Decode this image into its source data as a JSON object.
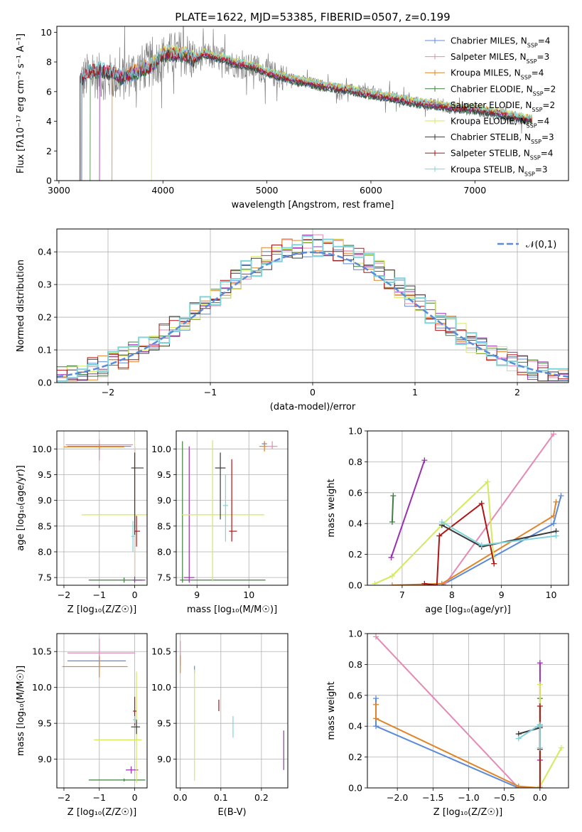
{
  "title": "PLATE=1622, MJD=53385, FIBERID=0507, z=0.199",
  "colors": {
    "chabrier_miles": "#5b8ad8",
    "salpeter_miles": "#e589b5",
    "kroupa_miles": "#e0842a",
    "chabrier_elodie": "#3f7f3f",
    "salpeter_elodie": "#9b2fb1",
    "kroupa_elodie": "#d4ea5a",
    "chabrier_stelib": "#3a3a3a",
    "salpeter_stelib": "#b01515",
    "kroupa_stelib": "#7fd4d9",
    "data": "#808080",
    "normal": "#5b8ad8",
    "grid": "#b0b0b0"
  },
  "chart_data": [
    {
      "id": "spectrum",
      "type": "line",
      "xlabel": "wavelength [Angstrom, rest frame]",
      "ylabel": "Flux [fλ10⁻¹⁷ erg cm⁻² s⁻¹ A⁻¹]",
      "xlim": [
        2980,
        7900
      ],
      "ylim": [
        0,
        10.4
      ],
      "xticks": [
        3000,
        4000,
        5000,
        6000,
        7000
      ],
      "yticks": [
        0,
        2,
        4,
        6,
        8,
        10
      ],
      "grid": false,
      "legend_position": "top-right",
      "legend": [
        "Chabrier MILES, N_SSP=4",
        "Salpeter MILES, N_SSP=3",
        "Kroupa MILES, N_SSP=4",
        "Chabrier ELODIE, N_SSP=2",
        "Salpeter ELODIE, N_SSP=2",
        "Kroupa ELODIE, N_SSP=4",
        "Chabrier STELIB, N_SSP=3",
        "Salpeter STELIB, N_SSP=4",
        "Kroupa STELIB, N_SSP=3"
      ],
      "data_series": {
        "x": [
          3200,
          3300,
          3400,
          3500,
          3600,
          3700,
          3800,
          3900,
          4000,
          4100,
          4200,
          4300,
          4400,
          4500,
          4600,
          4700,
          4800,
          4900,
          5000,
          5200,
          5400,
          5600,
          5800,
          6000,
          6200,
          6400,
          6600,
          6800,
          7000,
          7200,
          7400,
          7550
        ],
        "y": [
          6.6,
          7.2,
          7.0,
          7.0,
          6.8,
          7.3,
          7.6,
          7.9,
          8.3,
          8.5,
          8.6,
          8.1,
          8.4,
          8.3,
          8.1,
          7.8,
          7.7,
          7.6,
          7.3,
          6.9,
          6.6,
          6.3,
          6.1,
          5.9,
          5.6,
          5.3,
          5.1,
          4.9,
          4.8,
          4.5,
          4.2,
          4.1
        ]
      },
      "model_series": {
        "x": [
          3200,
          3300,
          3400,
          3500,
          3600,
          3700,
          3800,
          3900,
          4000,
          4100,
          4200,
          4300,
          4400,
          4500,
          4600,
          4700,
          4800,
          4900,
          5000,
          5200,
          5400,
          5600,
          5800,
          6000,
          6200,
          6400,
          6600,
          6800,
          7000,
          7200,
          7400,
          7550
        ],
        "y": [
          6.8,
          7.4,
          7.5,
          7.3,
          7.0,
          7.2,
          7.5,
          7.8,
          8.5,
          8.6,
          8.5,
          8.2,
          8.6,
          8.3,
          8.2,
          7.9,
          7.8,
          7.6,
          7.3,
          6.9,
          6.6,
          6.3,
          6.1,
          5.8,
          5.6,
          5.3,
          5.1,
          4.9,
          4.8,
          4.6,
          4.3,
          4.1
        ]
      }
    },
    {
      "id": "residuals",
      "type": "histogram",
      "xlabel": "(data-model)/error",
      "ylabel": "Normed distribution",
      "xlim": [
        -2.5,
        2.5
      ],
      "ylim": [
        0,
        0.47
      ],
      "xticks": [
        -2,
        -1,
        0,
        1,
        2
      ],
      "yticks": [
        0.0,
        0.1,
        0.2,
        0.3,
        0.4
      ],
      "grid": true,
      "legend_position": "top-right",
      "legend": [
        "𝒩(0,1)"
      ],
      "bin_width": 0.1,
      "x_start": -2.5
    },
    {
      "id": "age_vs_Z",
      "type": "errorbar",
      "xlabel": "Z [log₁₀(Z/Z☉)]",
      "ylabel": "age  [log₁₀(age/yr)]",
      "xlim": [
        -2.2,
        0.35
      ],
      "ylim": [
        7.35,
        10.35
      ],
      "xticks": [
        -2,
        -1,
        0
      ],
      "yticks": [
        7.5,
        8.0,
        8.5,
        9.0,
        9.5,
        10.0
      ],
      "grid": true,
      "points": [
        {
          "model": "chabrier_miles",
          "x": -1.0,
          "xerr": [
            0.9,
            0.9
          ],
          "y": 10.05,
          "yerr": [
            0.05,
            0.05
          ]
        },
        {
          "model": "salpeter_miles",
          "x": -1.0,
          "xerr": [
            0.95,
            0.95
          ],
          "y": 10.08,
          "yerr": [
            0.3,
            0.1
          ]
        },
        {
          "model": "kroupa_miles",
          "x": -1.0,
          "xerr": [
            1.0,
            0.7
          ],
          "y": 10.04,
          "yerr": [
            0.05,
            0.05
          ]
        },
        {
          "model": "chabrier_elodie",
          "x": -0.3,
          "xerr": [
            1.0,
            0.5
          ],
          "y": 7.45,
          "yerr": [
            0.05,
            0.05
          ]
        },
        {
          "model": "salpeter_elodie",
          "x": 0.0,
          "xerr": [
            0.05,
            0.3
          ],
          "y": 7.45,
          "yerr": [
            0.05,
            2.6
          ]
        },
        {
          "model": "kroupa_elodie",
          "x": 0.0,
          "xerr": [
            1.5,
            0.35
          ],
          "y": 8.72,
          "yerr": [
            1.2,
            1.45
          ]
        },
        {
          "model": "chabrier_stelib",
          "x": 0.0,
          "xerr": [
            0.1,
            0.25
          ],
          "y": 9.63,
          "yerr": [
            1.3,
            0.3
          ]
        },
        {
          "model": "salpeter_stelib",
          "x": 0.05,
          "xerr": [
            0.05,
            0.1
          ],
          "y": 8.4,
          "yerr": [
            0.3,
            0.3
          ]
        },
        {
          "model": "kroupa_stelib",
          "x": -0.05,
          "xerr": [
            0.05,
            0.05
          ],
          "y": 8.3,
          "yerr": [
            0.3,
            0.3
          ]
        }
      ]
    },
    {
      "id": "age_vs_mass",
      "type": "errorbar",
      "xlabel": "mass [log₁₀(M/M☉)]",
      "xlim": [
        8.6,
        10.75
      ],
      "ylim": [
        7.35,
        10.35
      ],
      "xticks": [
        9,
        10
      ],
      "yticks": [
        7.5,
        8.0,
        8.5,
        9.0,
        9.5,
        10.0
      ],
      "grid": true,
      "points": [
        {
          "model": "chabrier_miles",
          "x": 10.3,
          "xerr": [
            0.05,
            0.05
          ],
          "y": 10.1,
          "yerr": [
            0.05,
            0.05
          ]
        },
        {
          "model": "salpeter_miles",
          "x": 10.45,
          "xerr": [
            0.1,
            0.1
          ],
          "y": 10.05,
          "yerr": [
            0.05,
            0.1
          ]
        },
        {
          "model": "kroupa_miles",
          "x": 10.3,
          "xerr": [
            0.1,
            0.05
          ],
          "y": 10.05,
          "yerr": [
            0.1,
            0.1
          ]
        },
        {
          "model": "chabrier_elodie",
          "x": 8.72,
          "xerr": [
            0.05,
            1.6
          ],
          "y": 7.45,
          "yerr": [
            0.05,
            2.7
          ]
        },
        {
          "model": "salpeter_elodie",
          "x": 8.85,
          "xerr": [
            0.1,
            0.1
          ],
          "y": 7.5,
          "yerr": [
            0.1,
            2.55
          ]
        },
        {
          "model": "kroupa_elodie",
          "x": 9.3,
          "xerr": [
            0.6,
            1.0
          ],
          "y": 8.72,
          "yerr": [
            1.3,
            1.45
          ]
        },
        {
          "model": "chabrier_stelib",
          "x": 9.45,
          "xerr": [
            0.1,
            0.1
          ],
          "y": 9.63,
          "yerr": [
            1.0,
            0.3
          ]
        },
        {
          "model": "salpeter_stelib",
          "x": 9.67,
          "xerr": [
            0.05,
            0.1
          ],
          "y": 8.4,
          "yerr": [
            0.2,
            1.4
          ]
        },
        {
          "model": "kroupa_stelib",
          "x": 9.55,
          "xerr": [
            0.05,
            0.05
          ],
          "y": 8.9,
          "yerr": [
            0.7,
            0.6
          ]
        }
      ]
    },
    {
      "id": "weight_vs_age",
      "type": "line",
      "xlabel": "age  [log₁₀(age/yr)]",
      "ylabel": "mass weight",
      "xlim": [
        6.3,
        10.35
      ],
      "ylim": [
        0,
        1.0
      ],
      "xticks": [
        7,
        8,
        9,
        10
      ],
      "yticks": [
        0.0,
        0.2,
        0.4,
        0.6,
        0.8,
        1.0
      ],
      "grid": true,
      "series": [
        {
          "model": "chabrier_miles",
          "x": [
            7.8,
            10.05,
            10.2
          ],
          "y": [
            0.0,
            0.4,
            0.58
          ]
        },
        {
          "model": "salpeter_miles",
          "x": [
            7.85,
            10.05
          ],
          "y": [
            0.0,
            0.98
          ]
        },
        {
          "model": "kroupa_miles",
          "x": [
            6.8,
            7.8,
            10.05,
            10.1
          ],
          "y": [
            0.0,
            0.01,
            0.45,
            0.54
          ]
        },
        {
          "model": "chabrier_elodie",
          "x": [
            6.8,
            6.82
          ],
          "y": [
            0.41,
            0.58
          ]
        },
        {
          "model": "salpeter_elodie",
          "x": [
            6.78,
            7.45
          ],
          "y": [
            0.18,
            0.81
          ]
        },
        {
          "model": "kroupa_elodie",
          "x": [
            6.45,
            6.8,
            7.8,
            8.72,
            8.84
          ],
          "y": [
            0.01,
            0.06,
            0.39,
            0.67,
            0.18
          ]
        },
        {
          "model": "chabrier_stelib",
          "x": [
            7.8,
            8.6,
            10.1
          ],
          "y": [
            0.39,
            0.25,
            0.35
          ]
        },
        {
          "model": "salpeter_stelib",
          "x": [
            7.45,
            7.7,
            7.75,
            8.6,
            8.85
          ],
          "y": [
            0.01,
            0.0,
            0.32,
            0.53,
            0.14
          ]
        },
        {
          "model": "kroupa_stelib",
          "x": [
            7.8,
            8.6,
            10.1
          ],
          "y": [
            0.41,
            0.26,
            0.32
          ]
        }
      ]
    },
    {
      "id": "mass_vs_Z",
      "type": "errorbar",
      "xlabel": "Z [log₁₀(Z/Z☉)]",
      "ylabel": "mass [log₁₀(M/M☉)]",
      "xlim": [
        -2.2,
        0.35
      ],
      "ylim": [
        8.6,
        10.75
      ],
      "xticks": [
        -2,
        -1,
        0
      ],
      "yticks": [
        9.0,
        9.5,
        10.0,
        10.5
      ],
      "grid": true,
      "points": [
        {
          "model": "chabrier_miles",
          "x": -1.0,
          "xerr": [
            0.9,
            0.75
          ],
          "y": 10.37,
          "yerr": [
            0.05,
            0.05
          ]
        },
        {
          "model": "salpeter_miles",
          "x": -1.0,
          "xerr": [
            0.9,
            1.0
          ],
          "y": 10.48,
          "yerr": [
            0.2,
            0.2
          ]
        },
        {
          "model": "kroupa_miles",
          "x": -1.0,
          "xerr": [
            1.05,
            0.8
          ],
          "y": 10.29,
          "yerr": [
            0.15,
            0.15
          ]
        },
        {
          "model": "chabrier_elodie",
          "x": -0.3,
          "xerr": [
            1.0,
            0.6
          ],
          "y": 8.71,
          "yerr": [
            0.02,
            0.02
          ]
        },
        {
          "model": "salpeter_elodie",
          "x": -0.1,
          "xerr": [
            0.15,
            0.2
          ],
          "y": 8.85,
          "yerr": [
            0.05,
            0.05
          ]
        },
        {
          "model": "kroupa_elodie",
          "x": 0.05,
          "xerr": [
            1.2,
            0.15
          ],
          "y": 9.27,
          "yerr": [
            0.6,
            0.95
          ]
        },
        {
          "model": "chabrier_stelib",
          "x": 0.05,
          "xerr": [
            0.15,
            0.1
          ],
          "y": 9.45,
          "yerr": [
            0.1,
            0.1
          ]
        },
        {
          "model": "salpeter_stelib",
          "x": 0.0,
          "xerr": [
            0.05,
            0.05
          ],
          "y": 9.67,
          "yerr": [
            0.2,
            0.2
          ]
        },
        {
          "model": "kroupa_stelib",
          "x": 0.0,
          "xerr": [
            0.05,
            0.05
          ],
          "y": 9.55,
          "yerr": [
            0.05,
            0.05
          ]
        }
      ]
    },
    {
      "id": "mass_vs_ebv",
      "type": "errorbar",
      "xlabel": "E(B-V)",
      "xlim": [
        -0.01,
        0.265
      ],
      "ylim": [
        8.6,
        10.75
      ],
      "xticks": [
        0.0,
        0.1,
        0.2
      ],
      "yticks": [
        9.0,
        9.5,
        10.0,
        10.5
      ],
      "grid": true,
      "points": [
        {
          "model": "salpeter_miles",
          "x": 0.0,
          "y": 10.5,
          "yerr": [
            0.2,
            0.15
          ]
        },
        {
          "model": "kroupa_miles",
          "x": 0.0,
          "y": 10.35,
          "yerr": [
            0.15,
            0.1
          ]
        },
        {
          "model": "chabrier_miles",
          "x": 0.035,
          "y": 10.25,
          "yerr": [
            0.05,
            0.05
          ]
        },
        {
          "model": "kroupa_elodie",
          "x": 0.035,
          "y": 9.45,
          "yerr": [
            0.75,
            0.8
          ]
        },
        {
          "model": "salpeter_stelib",
          "x": 0.095,
          "y": 9.75,
          "yerr": [
            0.08,
            0.08
          ]
        },
        {
          "model": "kroupa_stelib",
          "x": 0.13,
          "y": 9.45,
          "yerr": [
            0.15,
            0.15
          ]
        },
        {
          "model": "salpeter_elodie",
          "x": 0.255,
          "y": 9.15,
          "yerr": [
            0.3,
            0.25
          ]
        }
      ]
    },
    {
      "id": "weight_vs_Z",
      "type": "line",
      "xlabel": "Z [log₁₀(Z/Z☉)]",
      "ylabel": "mass weight",
      "xlim": [
        -2.42,
        0.4
      ],
      "ylim": [
        0,
        1.0
      ],
      "xticks": [
        -2.0,
        -1.5,
        -1.0,
        -0.5,
        0.0
      ],
      "yticks": [
        0.0,
        0.2,
        0.4,
        0.6,
        0.8,
        1.0
      ],
      "grid": true,
      "series": [
        {
          "model": "chabrier_miles",
          "x": [
            -2.3,
            -2.3,
            -0.3,
            0.0,
            0.0
          ],
          "y": [
            0.58,
            0.4,
            0.0,
            0.0,
            0.4
          ]
        },
        {
          "model": "salpeter_miles",
          "x": [
            -2.3,
            -0.3,
            0.0
          ],
          "y": [
            0.98,
            0.0,
            0.0
          ]
        },
        {
          "model": "kroupa_miles",
          "x": [
            -2.3,
            -2.3,
            -0.3,
            0.0
          ],
          "y": [
            0.54,
            0.45,
            0.01,
            0.0
          ]
        },
        {
          "model": "chabrier_elodie",
          "x": [
            0.0,
            0.0
          ],
          "y": [
            0.41,
            0.58
          ]
        },
        {
          "model": "salpeter_elodie",
          "x": [
            0.0,
            0.0
          ],
          "y": [
            0.18,
            0.81
          ]
        },
        {
          "model": "kroupa_elodie",
          "x": [
            0.0,
            0.0,
            0.3
          ],
          "y": [
            0.67,
            0.01,
            0.26
          ]
        },
        {
          "model": "chabrier_stelib",
          "x": [
            -0.3,
            0.0,
            0.0
          ],
          "y": [
            0.35,
            0.39,
            0.25
          ]
        },
        {
          "model": "salpeter_stelib",
          "x": [
            0.0,
            0.0
          ],
          "y": [
            0.0,
            0.53
          ]
        },
        {
          "model": "kroupa_stelib",
          "x": [
            -0.3,
            0.0,
            0.0
          ],
          "y": [
            0.32,
            0.41,
            0.26
          ]
        }
      ]
    }
  ]
}
